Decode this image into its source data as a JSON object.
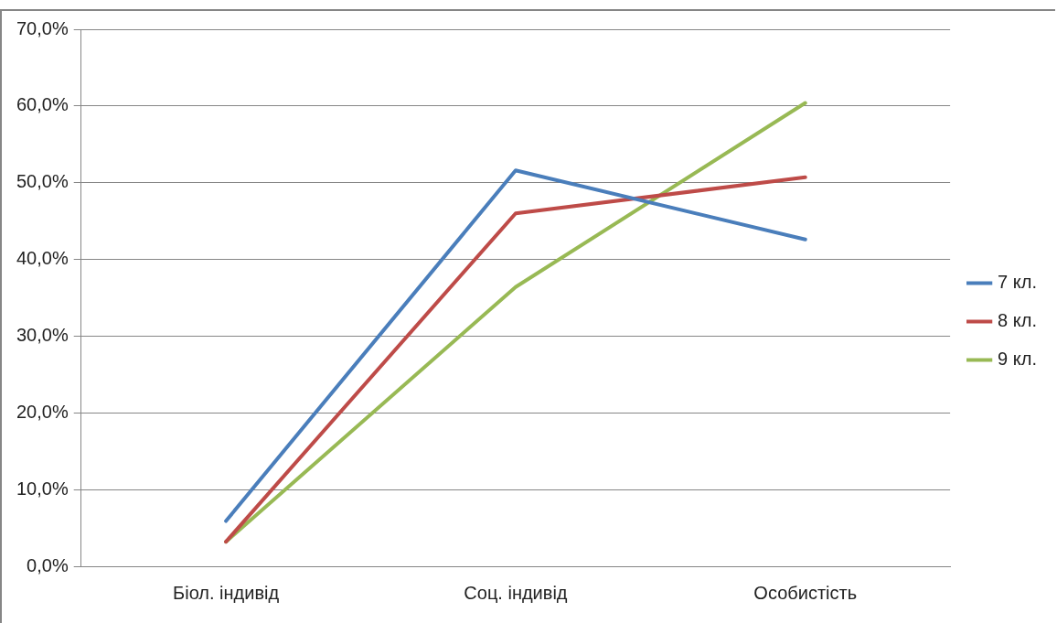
{
  "chart_data": {
    "type": "line",
    "categories": [
      "Біол. індивід",
      "Соц. індивід",
      "Особистість"
    ],
    "series": [
      {
        "name": "7 кл.",
        "color": "#4a7ebb",
        "values": [
          5.9,
          51.6,
          42.6
        ]
      },
      {
        "name": "8 кл.",
        "color": "#be4b48",
        "values": [
          3.2,
          46.0,
          50.7
        ]
      },
      {
        "name": "9 кл.",
        "color": "#98b954",
        "values": [
          3.2,
          36.4,
          60.4
        ]
      }
    ],
    "ylim": [
      0,
      70
    ],
    "yticks": [
      {
        "value": 0,
        "label": "0,0%"
      },
      {
        "value": 10,
        "label": "10,0%"
      },
      {
        "value": 20,
        "label": "20,0%"
      },
      {
        "value": 30,
        "label": "30,0%"
      },
      {
        "value": 40,
        "label": "40,0%"
      },
      {
        "value": 50,
        "label": "50,0%"
      },
      {
        "value": 60,
        "label": "60,0%"
      },
      {
        "value": 70,
        "label": "70,0%"
      }
    ],
    "grid": "y",
    "legend": "right",
    "marker": "none",
    "line_style": "solid"
  }
}
